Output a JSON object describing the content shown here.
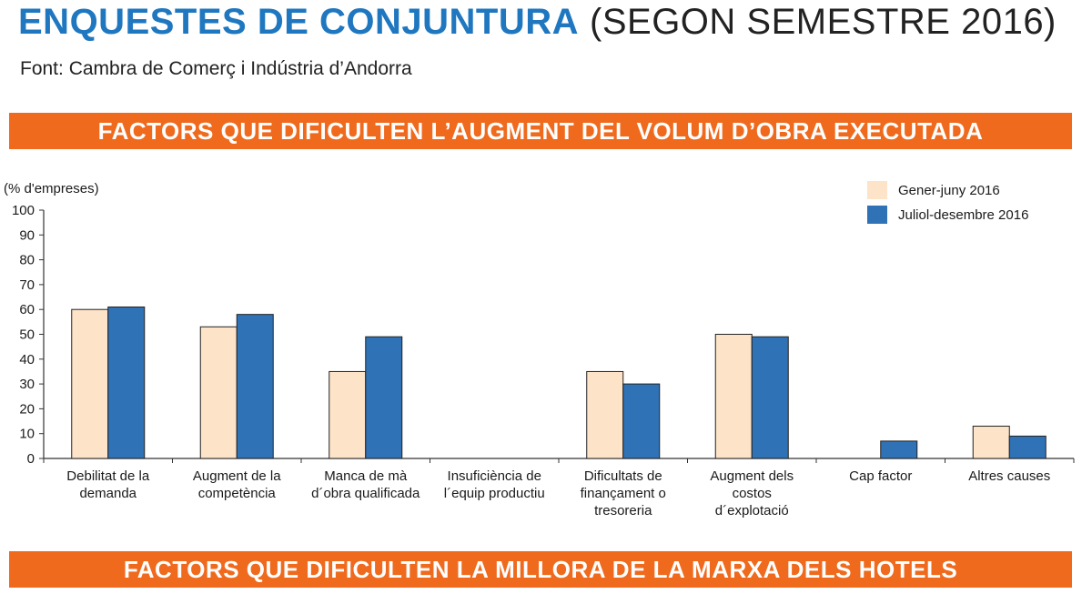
{
  "header": {
    "title": "ENQUESTES DE CONJUNTURA",
    "subtitle": "(SEGON SEMESTRE 2016)",
    "source": "Font: Cambra de Comerç i Indústria d’Andorra"
  },
  "sections": {
    "first": "FACTORS QUE DIFICULTEN L’AUGMENT DEL VOLUM D’OBRA EXECUTADA",
    "second": "FACTORS QUE DIFICULTEN LA MILLORA DE LA MARXA DELS HOTELS"
  },
  "colors": {
    "title": "#1f77c0",
    "banner": "#ef6a1d",
    "series1": "#fde3c8",
    "series2": "#2f72b5"
  },
  "chart_data": {
    "type": "bar",
    "ylabel": "(% d'empreses)",
    "ylim": [
      0,
      100
    ],
    "yticks": [
      0,
      10,
      20,
      30,
      40,
      50,
      60,
      70,
      80,
      90,
      100
    ],
    "grid": false,
    "legend": "top-right",
    "categories": [
      [
        "Debilitat de la",
        "demanda"
      ],
      [
        "Augment de la",
        "competència"
      ],
      [
        "Manca de mà",
        "d´obra qualificada"
      ],
      [
        "Insuficiència de",
        "l´equip productiu"
      ],
      [
        "Dificultats de",
        "finançament o",
        "tresoreria"
      ],
      [
        "Augment dels",
        "costos",
        "d´explotació"
      ],
      [
        "Cap factor"
      ],
      [
        "Altres causes"
      ]
    ],
    "series": [
      {
        "name": "Gener-juny 2016",
        "values": [
          60,
          53,
          35,
          0,
          35,
          50,
          0,
          13
        ]
      },
      {
        "name": "Juliol-desembre 2016",
        "values": [
          61,
          58,
          49,
          0,
          30,
          49,
          7,
          9
        ]
      }
    ]
  }
}
